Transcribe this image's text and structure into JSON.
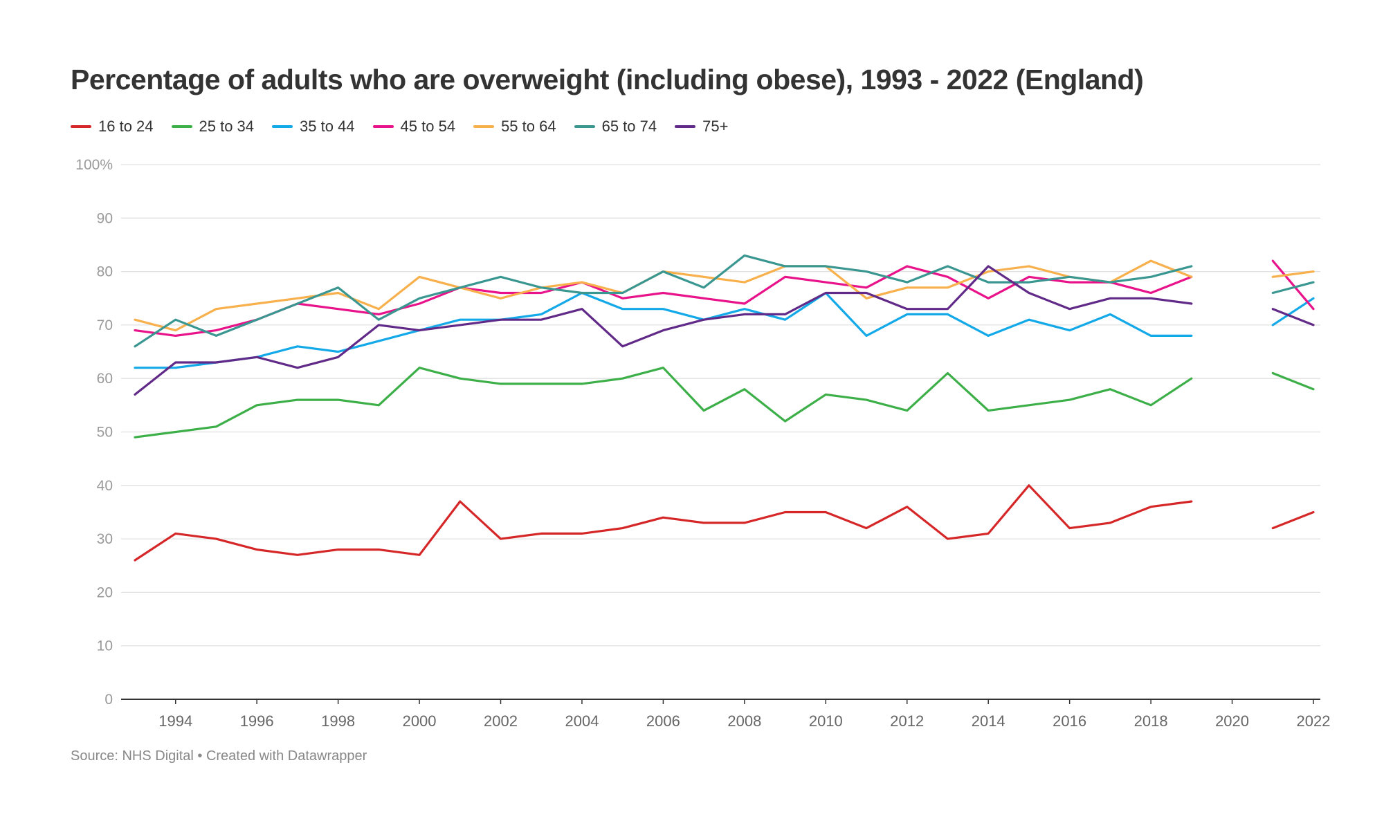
{
  "chart_data": {
    "type": "line",
    "title": "Percentage of adults who are overweight (including obese), 1993 - 2022 (England)",
    "xlabel": "",
    "ylabel": "",
    "ylim": [
      0,
      100
    ],
    "xlim": [
      1993,
      2022
    ],
    "y_ticks": [
      {
        "value": 0,
        "label": "0"
      },
      {
        "value": 10,
        "label": "10"
      },
      {
        "value": 20,
        "label": "20"
      },
      {
        "value": 30,
        "label": "30"
      },
      {
        "value": 40,
        "label": "40"
      },
      {
        "value": 50,
        "label": "50"
      },
      {
        "value": 60,
        "label": "60"
      },
      {
        "value": 70,
        "label": "70"
      },
      {
        "value": 80,
        "label": "80"
      },
      {
        "value": 90,
        "label": "90"
      },
      {
        "value": 100,
        "label": "100%"
      }
    ],
    "x_ticks": [
      1994,
      1996,
      1998,
      2000,
      2002,
      2004,
      2006,
      2008,
      2010,
      2012,
      2014,
      2016,
      2018,
      2020,
      2022
    ],
    "grid": "horizontal",
    "legend_position": "top-left",
    "x": [
      1993,
      1994,
      1995,
      1996,
      1997,
      1998,
      1999,
      2000,
      2001,
      2002,
      2003,
      2004,
      2005,
      2006,
      2007,
      2008,
      2009,
      2010,
      2011,
      2012,
      2013,
      2014,
      2015,
      2016,
      2017,
      2018,
      2019,
      2020,
      2021,
      2022
    ],
    "series": [
      {
        "name": "16 to 24",
        "color": "#d62728",
        "values": [
          26,
          31,
          30,
          28,
          27,
          28,
          28,
          27,
          37,
          30,
          31,
          31,
          32,
          34,
          33,
          33,
          35,
          35,
          32,
          36,
          30,
          31,
          40,
          32,
          33,
          36,
          37,
          null,
          32,
          35
        ]
      },
      {
        "name": "25 to 34",
        "color": "#3daf48",
        "values": [
          49,
          50,
          51,
          55,
          56,
          56,
          55,
          62,
          60,
          59,
          59,
          59,
          60,
          62,
          54,
          58,
          52,
          57,
          56,
          54,
          61,
          54,
          55,
          56,
          58,
          55,
          60,
          null,
          61,
          58
        ]
      },
      {
        "name": "35 to 44",
        "color": "#13a9e8",
        "values": [
          62,
          62,
          63,
          64,
          66,
          65,
          67,
          69,
          71,
          71,
          72,
          76,
          73,
          73,
          71,
          73,
          71,
          76,
          68,
          72,
          72,
          68,
          71,
          69,
          72,
          68,
          68,
          null,
          70,
          75
        ]
      },
      {
        "name": "45 to 54",
        "color": "#e8138a",
        "values": [
          69,
          68,
          69,
          71,
          74,
          73,
          72,
          74,
          77,
          76,
          76,
          78,
          75,
          76,
          75,
          74,
          79,
          78,
          77,
          81,
          79,
          75,
          79,
          78,
          78,
          76,
          79,
          null,
          82,
          73
        ]
      },
      {
        "name": "55 to 64",
        "color": "#f7b04c",
        "values": [
          71,
          69,
          73,
          74,
          75,
          76,
          73,
          79,
          77,
          75,
          77,
          78,
          76,
          80,
          79,
          78,
          81,
          81,
          75,
          77,
          77,
          80,
          81,
          79,
          78,
          82,
          79,
          null,
          79,
          80
        ]
      },
      {
        "name": "65 to 74",
        "color": "#3a9690",
        "values": [
          66,
          71,
          68,
          71,
          74,
          77,
          71,
          75,
          77,
          79,
          77,
          76,
          76,
          80,
          77,
          83,
          81,
          81,
          80,
          78,
          81,
          78,
          78,
          79,
          78,
          79,
          81,
          null,
          76,
          78
        ]
      },
      {
        "name": "75+",
        "color": "#622a88",
        "values": [
          57,
          63,
          63,
          64,
          62,
          64,
          70,
          69,
          70,
          71,
          71,
          73,
          66,
          69,
          71,
          72,
          72,
          76,
          76,
          73,
          73,
          81,
          76,
          73,
          75,
          75,
          74,
          null,
          73,
          70
        ]
      }
    ]
  },
  "footer": {
    "source": "Source: NHS Digital • Created with Datawrapper"
  }
}
